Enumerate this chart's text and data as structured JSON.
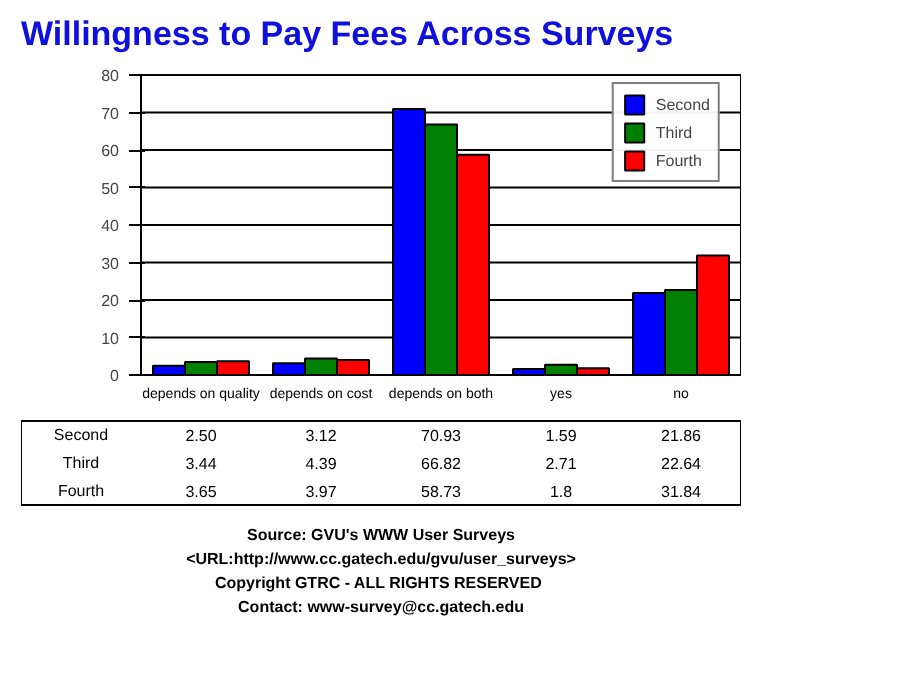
{
  "chart_data": {
    "type": "bar",
    "title": "Willingness to Pay Fees Across Surveys",
    "categories": [
      "depends on quality",
      "depends on cost",
      "depends on both",
      "yes",
      "no"
    ],
    "series": [
      {
        "name": "Second",
        "color": "#0000ff",
        "values": [
          2.5,
          3.12,
          70.93,
          1.59,
          21.86
        ],
        "value_labels": [
          "2.50",
          "3.12",
          "70.93",
          "1.59",
          "21.86"
        ]
      },
      {
        "name": "Third",
        "color": "#008000",
        "values": [
          3.44,
          4.39,
          66.82,
          2.71,
          22.64
        ],
        "value_labels": [
          "3.44",
          "4.39",
          "66.82",
          "2.71",
          "22.64"
        ]
      },
      {
        "name": "Fourth",
        "color": "#ff0000",
        "values": [
          3.65,
          3.97,
          58.73,
          1.8,
          31.84
        ],
        "value_labels": [
          "3.65",
          "3.97",
          "58.73",
          "1.8",
          "31.84"
        ]
      }
    ],
    "ylim": [
      0,
      80
    ],
    "yticks": [
      0,
      10,
      20,
      30,
      40,
      50,
      60,
      70,
      80
    ],
    "grid": "y",
    "legend": "top right",
    "annotations": [
      "Source: GVU's WWW User Surveys",
      "<URL:http://www.cc.gatech.edu/gvu/user_surveys>",
      "Copyright GTRC -  ALL RIGHTS RESERVED",
      "Contact: www-survey@cc.gatech.edu"
    ]
  }
}
